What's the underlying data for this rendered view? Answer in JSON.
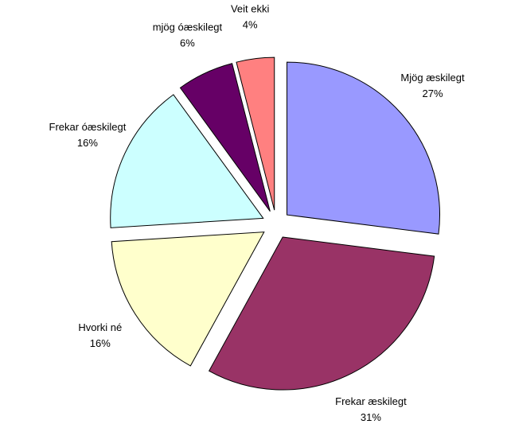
{
  "chart_data": {
    "type": "pie",
    "categories": [
      "Mjög æskilegt",
      "Frekar æskilegt",
      "Hvorki né",
      "Frekar óæskilegt",
      "mjög óæskilegt",
      "Veit ekki"
    ],
    "values": [
      27,
      31,
      16,
      16,
      6,
      4
    ],
    "value_labels": [
      "27%",
      "31%",
      "16%",
      "16%",
      "6%",
      "4%"
    ],
    "colors": [
      "#9999ff",
      "#993366",
      "#ffffcc",
      "#ccffff",
      "#660066",
      "#ff8080"
    ],
    "exploded": true
  }
}
